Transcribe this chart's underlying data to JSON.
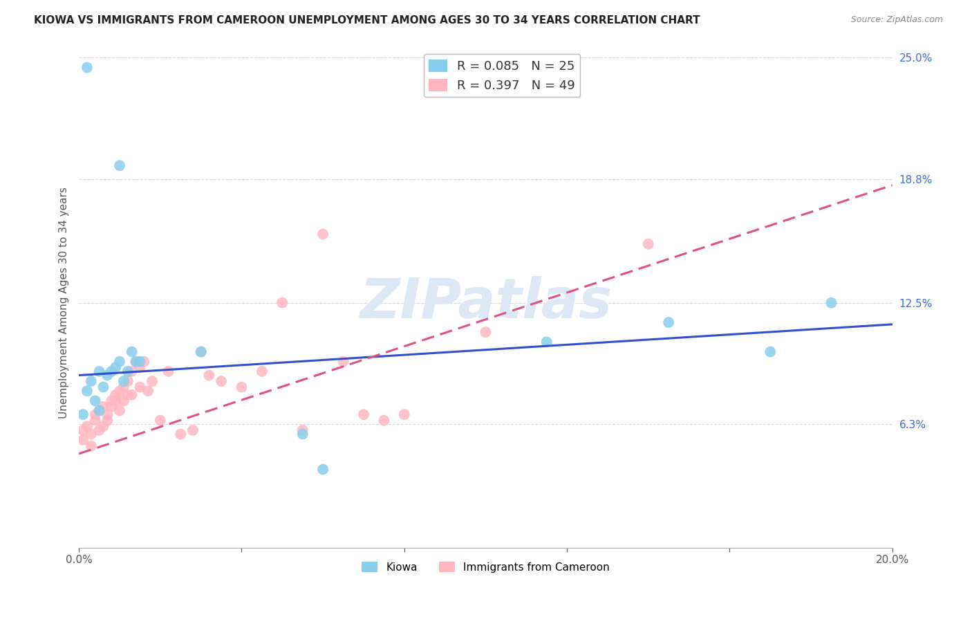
{
  "title": "KIOWA VS IMMIGRANTS FROM CAMEROON UNEMPLOYMENT AMONG AGES 30 TO 34 YEARS CORRELATION CHART",
  "source": "Source: ZipAtlas.com",
  "ylabel": "Unemployment Among Ages 30 to 34 years",
  "xlim": [
    0.0,
    0.2
  ],
  "ylim": [
    0.0,
    0.25
  ],
  "x_ticks": [
    0.0,
    0.04,
    0.08,
    0.12,
    0.16,
    0.2
  ],
  "x_tick_labels": [
    "0.0%",
    "",
    "",
    "",
    "",
    "20.0%"
  ],
  "y_tick_labels_right": [
    "6.3%",
    "12.5%",
    "18.8%",
    "25.0%"
  ],
  "y_ticks_right": [
    0.063,
    0.125,
    0.188,
    0.25
  ],
  "grid_color": "#cccccc",
  "background_color": "#ffffff",
  "kiowa_color": "#87CEEB",
  "cameroon_color": "#FFB6C1",
  "kiowa_line_color": "#3050d0",
  "cameroon_line_color": "#e05080",
  "kiowa_R": 0.085,
  "kiowa_N": 25,
  "cameroon_R": 0.397,
  "cameroon_N": 49,
  "kiowa_x": [
    0.001,
    0.002,
    0.003,
    0.004,
    0.005,
    0.005,
    0.006,
    0.007,
    0.008,
    0.009,
    0.01,
    0.011,
    0.012,
    0.013,
    0.014,
    0.015,
    0.03,
    0.055,
    0.06,
    0.115,
    0.145,
    0.17,
    0.185,
    0.002,
    0.01
  ],
  "kiowa_y": [
    0.068,
    0.08,
    0.085,
    0.075,
    0.07,
    0.09,
    0.082,
    0.088,
    0.09,
    0.092,
    0.095,
    0.085,
    0.09,
    0.1,
    0.095,
    0.095,
    0.1,
    0.058,
    0.04,
    0.105,
    0.115,
    0.1,
    0.125,
    0.245,
    0.195
  ],
  "cameroon_x": [
    0.001,
    0.001,
    0.002,
    0.003,
    0.003,
    0.004,
    0.004,
    0.005,
    0.005,
    0.006,
    0.006,
    0.007,
    0.007,
    0.008,
    0.008,
    0.009,
    0.009,
    0.01,
    0.01,
    0.011,
    0.011,
    0.012,
    0.012,
    0.013,
    0.013,
    0.014,
    0.015,
    0.015,
    0.016,
    0.017,
    0.018,
    0.02,
    0.022,
    0.025,
    0.028,
    0.03,
    0.032,
    0.035,
    0.04,
    0.045,
    0.05,
    0.055,
    0.06,
    0.065,
    0.07,
    0.075,
    0.08,
    0.1,
    0.14
  ],
  "cameroon_y": [
    0.06,
    0.055,
    0.062,
    0.058,
    0.052,
    0.065,
    0.068,
    0.06,
    0.07,
    0.062,
    0.072,
    0.065,
    0.068,
    0.072,
    0.075,
    0.075,
    0.078,
    0.07,
    0.08,
    0.075,
    0.082,
    0.078,
    0.085,
    0.078,
    0.09,
    0.095,
    0.082,
    0.092,
    0.095,
    0.08,
    0.085,
    0.065,
    0.09,
    0.058,
    0.06,
    0.1,
    0.088,
    0.085,
    0.082,
    0.09,
    0.125,
    0.06,
    0.16,
    0.095,
    0.068,
    0.065,
    0.068,
    0.11,
    0.155
  ],
  "kiowa_line_x0": 0.0,
  "kiowa_line_x1": 0.2,
  "kiowa_line_y0": 0.088,
  "kiowa_line_y1": 0.114,
  "cameroon_line_x0": 0.0,
  "cameroon_line_x1": 0.2,
  "cameroon_line_y0": 0.048,
  "cameroon_line_y1": 0.185,
  "watermark": "ZIPatlas"
}
